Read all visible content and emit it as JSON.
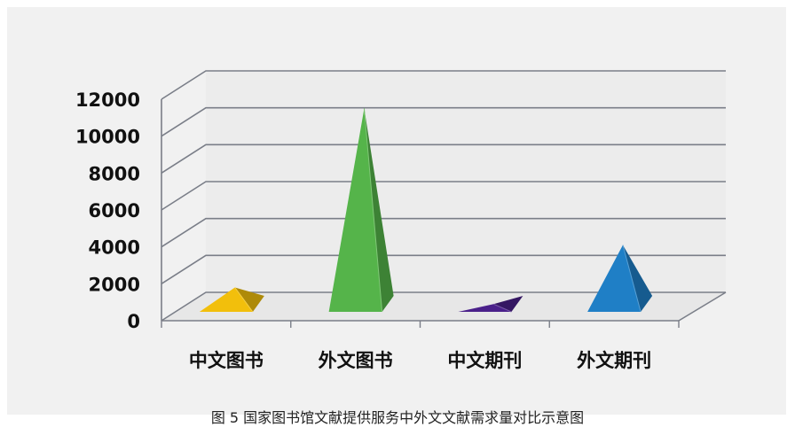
{
  "chart_data": {
    "type": "bar",
    "shape": "3d-pyramid",
    "categories": [
      "中文图书",
      "外文图书",
      "中文期刊",
      "外文期刊"
    ],
    "values": [
      1800,
      11500,
      900,
      4100
    ],
    "y_ticks": [
      "0",
      "2000",
      "4000",
      "6000",
      "8000",
      "10000",
      "12000"
    ],
    "ylim": [
      0,
      12000
    ],
    "grid": true,
    "colors": [
      "#f2bf0c",
      "#55b44a",
      "#4a208a",
      "#1f7fc6"
    ],
    "caption": "图 5  国家图书馆文献提供服务中外文文献需求量对比示意图"
  }
}
